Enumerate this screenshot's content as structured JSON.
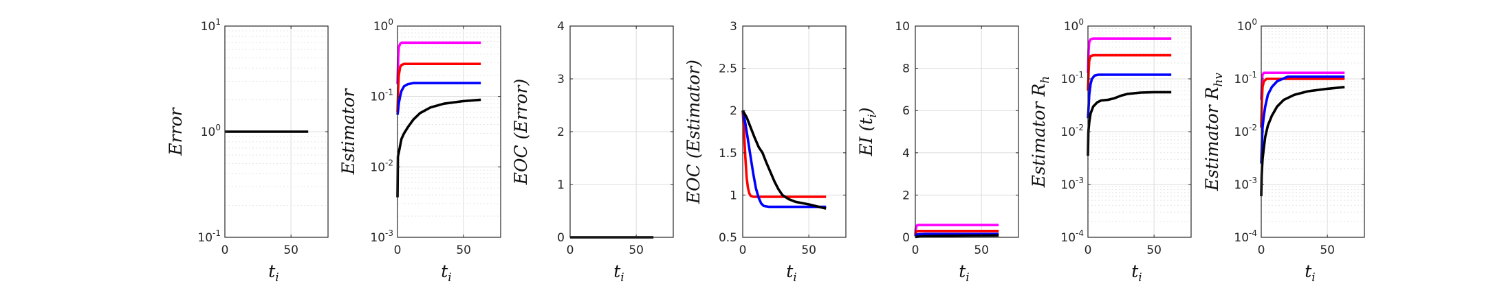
{
  "chart_data": [
    {
      "type": "line",
      "xlabel": "t_i",
      "ylabel": "Error",
      "yscale": "log",
      "ylim": [
        0.1,
        10
      ],
      "xlim": [
        0,
        78
      ],
      "xticks": [
        0,
        50
      ],
      "yticks": [
        0.1,
        1,
        10
      ],
      "ytick_labels": [
        {
          "base": "10",
          "exp": "-1"
        },
        {
          "base": "10",
          "exp": "0"
        },
        {
          "base": "10",
          "exp": "1"
        }
      ],
      "grid": true,
      "series": [
        {
          "color": "#000000",
          "x": [
            0,
            63
          ],
          "y": [
            1,
            1
          ]
        }
      ]
    },
    {
      "type": "line",
      "xlabel": "t_i",
      "ylabel": "Estimator",
      "yscale": "log",
      "ylim": [
        0.001,
        1
      ],
      "xlim": [
        0,
        78
      ],
      "xticks": [
        0,
        50
      ],
      "yticks": [
        0.001,
        0.01,
        0.1,
        1
      ],
      "ytick_labels": [
        {
          "base": "10",
          "exp": "-3"
        },
        {
          "base": "10",
          "exp": "-2"
        },
        {
          "base": "10",
          "exp": "-1"
        },
        {
          "base": "10",
          "exp": "0"
        }
      ],
      "grid": true,
      "series": [
        {
          "color": "#ff00ff",
          "x": [
            0,
            0.5,
            1,
            2,
            3,
            5,
            63
          ],
          "y": [
            0.15,
            0.35,
            0.5,
            0.56,
            0.58,
            0.58,
            0.58
          ]
        },
        {
          "color": "#ff0000",
          "x": [
            0,
            0.5,
            1,
            2,
            3,
            5,
            10,
            63
          ],
          "y": [
            0.06,
            0.13,
            0.2,
            0.26,
            0.28,
            0.29,
            0.29,
            0.29
          ]
        },
        {
          "color": "#0000ff",
          "x": [
            0,
            0.5,
            1,
            2,
            3,
            5,
            8,
            12,
            20,
            63
          ],
          "y": [
            0.055,
            0.065,
            0.08,
            0.1,
            0.12,
            0.14,
            0.15,
            0.155,
            0.155,
            0.155
          ]
        },
        {
          "color": "#000000",
          "x": [
            0,
            0.3,
            1,
            2,
            3,
            5,
            8,
            12,
            17,
            25,
            35,
            50,
            63
          ],
          "y": [
            0.0037,
            0.014,
            0.016,
            0.02,
            0.025,
            0.03,
            0.037,
            0.047,
            0.058,
            0.07,
            0.079,
            0.086,
            0.09
          ]
        }
      ]
    },
    {
      "type": "line",
      "xlabel": "t_i",
      "ylabel": "EOC (Error)",
      "yscale": "linear",
      "ylim": [
        0,
        4
      ],
      "xlim": [
        0,
        78
      ],
      "xticks": [
        0,
        50
      ],
      "yticks": [
        0,
        1,
        2,
        3,
        4
      ],
      "ytick_labels": [
        "0",
        "1",
        "2",
        "3",
        "4"
      ],
      "grid": true,
      "series": [
        {
          "color": "#000000",
          "x": [
            0,
            63
          ],
          "y": [
            0,
            0
          ]
        }
      ]
    },
    {
      "type": "line",
      "xlabel": "t_i",
      "ylabel": "EOC (Estimator)",
      "yscale": "linear",
      "ylim": [
        0.5,
        3
      ],
      "xlim": [
        0,
        78
      ],
      "xticks": [
        0,
        50
      ],
      "yticks": [
        0.5,
        1,
        1.5,
        2,
        2.5,
        3
      ],
      "ytick_labels": [
        "0.5",
        "1",
        "1.5",
        "2",
        "2.5",
        "3"
      ],
      "grid": true,
      "series": [
        {
          "color": "#ff0000",
          "x": [
            0,
            1,
            2,
            3,
            4,
            5,
            6,
            8,
            63
          ],
          "y": [
            2.0,
            1.75,
            1.45,
            1.2,
            1.08,
            1.02,
            0.99,
            0.98,
            0.98
          ]
        },
        {
          "color": "#0000ff",
          "x": [
            0,
            2,
            4,
            6,
            8,
            10,
            12,
            14,
            16,
            20,
            63
          ],
          "y": [
            2.0,
            1.85,
            1.65,
            1.45,
            1.25,
            1.08,
            0.97,
            0.9,
            0.87,
            0.86,
            0.86
          ]
        },
        {
          "color": "#000000",
          "x": [
            0,
            3,
            6,
            9,
            12,
            15,
            18,
            21,
            24,
            27,
            30,
            35,
            40,
            50,
            63
          ],
          "y": [
            2.0,
            1.92,
            1.8,
            1.68,
            1.57,
            1.5,
            1.38,
            1.27,
            1.16,
            1.07,
            1.0,
            0.95,
            0.92,
            0.89,
            0.84
          ]
        }
      ]
    },
    {
      "type": "line",
      "xlabel": "EI (t_i)",
      "ylabel": "EI (t_i)",
      "yscale": "linear",
      "ylim": [
        0,
        10
      ],
      "xlim": [
        0,
        78
      ],
      "xticks": [
        0,
        50
      ],
      "yticks": [
        0,
        2,
        4,
        6,
        8,
        10
      ],
      "ytick_labels": [
        "0",
        "2",
        "4",
        "6",
        "8",
        "10"
      ],
      "grid": true,
      "series": [
        {
          "color": "#ff00ff",
          "x": [
            0,
            0.3,
            1,
            2,
            63
          ],
          "y": [
            0.15,
            0.4,
            0.55,
            0.58,
            0.58
          ]
        },
        {
          "color": "#ff0000",
          "x": [
            0,
            0.3,
            1,
            2,
            63
          ],
          "y": [
            0.08,
            0.2,
            0.28,
            0.3,
            0.3
          ]
        },
        {
          "color": "#0000ff",
          "x": [
            0,
            0.3,
            1,
            3,
            8,
            63
          ],
          "y": [
            0.05,
            0.1,
            0.13,
            0.15,
            0.16,
            0.16
          ]
        },
        {
          "color": "#000000",
          "x": [
            0,
            5,
            20,
            40,
            63
          ],
          "y": [
            0.02,
            0.05,
            0.07,
            0.08,
            0.09
          ]
        }
      ]
    },
    {
      "type": "line",
      "xlabel": "t_i",
      "ylabel": "Estimator R_h",
      "yscale": "log",
      "ylim": [
        0.0001,
        1
      ],
      "xlim": [
        0,
        78
      ],
      "xticks": [
        0,
        50
      ],
      "yticks": [
        0.0001,
        0.001,
        0.01,
        0.1,
        1
      ],
      "ytick_labels": [
        {
          "base": "10",
          "exp": "-4"
        },
        {
          "base": "10",
          "exp": "-3"
        },
        {
          "base": "10",
          "exp": "-2"
        },
        {
          "base": "10",
          "exp": "-1"
        },
        {
          "base": "10",
          "exp": "0"
        }
      ],
      "grid": true,
      "series": [
        {
          "color": "#ff00ff",
          "x": [
            0,
            0.5,
            1,
            2,
            4,
            63
          ],
          "y": [
            0.13,
            0.35,
            0.5,
            0.56,
            0.58,
            0.58
          ]
        },
        {
          "color": "#ff0000",
          "x": [
            0,
            0.5,
            1,
            2,
            4,
            63
          ],
          "y": [
            0.06,
            0.14,
            0.22,
            0.27,
            0.28,
            0.28
          ]
        },
        {
          "color": "#0000ff",
          "x": [
            0,
            0.5,
            1,
            2,
            3,
            5,
            8,
            12,
            63
          ],
          "y": [
            0.018,
            0.03,
            0.05,
            0.08,
            0.1,
            0.115,
            0.12,
            0.12,
            0.12
          ]
        },
        {
          "color": "#000000",
          "x": [
            0,
            0.3,
            1,
            2,
            4,
            7,
            10,
            15,
            20,
            25,
            30,
            40,
            50,
            63
          ],
          "y": [
            0.0035,
            0.01,
            0.015,
            0.022,
            0.03,
            0.036,
            0.039,
            0.04,
            0.043,
            0.048,
            0.052,
            0.055,
            0.056,
            0.056
          ]
        }
      ]
    },
    {
      "type": "line",
      "xlabel": "t_i",
      "ylabel": "Estimator R_hv",
      "yscale": "log",
      "ylim": [
        0.0001,
        1
      ],
      "xlim": [
        0,
        78
      ],
      "xticks": [
        0,
        50
      ],
      "yticks": [
        0.0001,
        0.001,
        0.01,
        0.1,
        1
      ],
      "ytick_labels": [
        {
          "base": "10",
          "exp": "-4"
        },
        {
          "base": "10",
          "exp": "-3"
        },
        {
          "base": "10",
          "exp": "-2"
        },
        {
          "base": "10",
          "exp": "-1"
        },
        {
          "base": "10",
          "exp": "0"
        }
      ],
      "grid": true,
      "series": [
        {
          "color": "#ff00ff",
          "x": [
            0,
            0.5,
            1,
            2,
            63
          ],
          "y": [
            0.04,
            0.09,
            0.12,
            0.13,
            0.13
          ]
        },
        {
          "color": "#ff0000",
          "x": [
            0,
            0.5,
            1,
            2,
            4,
            63
          ],
          "y": [
            0.012,
            0.04,
            0.07,
            0.09,
            0.1,
            0.1
          ]
        },
        {
          "color": "#0000ff",
          "x": [
            0,
            0.5,
            1,
            2,
            3,
            5,
            8,
            12,
            20,
            63
          ],
          "y": [
            0.0025,
            0.006,
            0.012,
            0.02,
            0.03,
            0.05,
            0.07,
            0.09,
            0.11,
            0.11
          ]
        },
        {
          "color": "#000000",
          "x": [
            0,
            0.3,
            1,
            2,
            3,
            5,
            8,
            12,
            17,
            25,
            35,
            50,
            63
          ],
          "y": [
            0.0006,
            0.0015,
            0.003,
            0.005,
            0.008,
            0.013,
            0.02,
            0.03,
            0.04,
            0.05,
            0.058,
            0.065,
            0.07
          ]
        }
      ]
    }
  ]
}
